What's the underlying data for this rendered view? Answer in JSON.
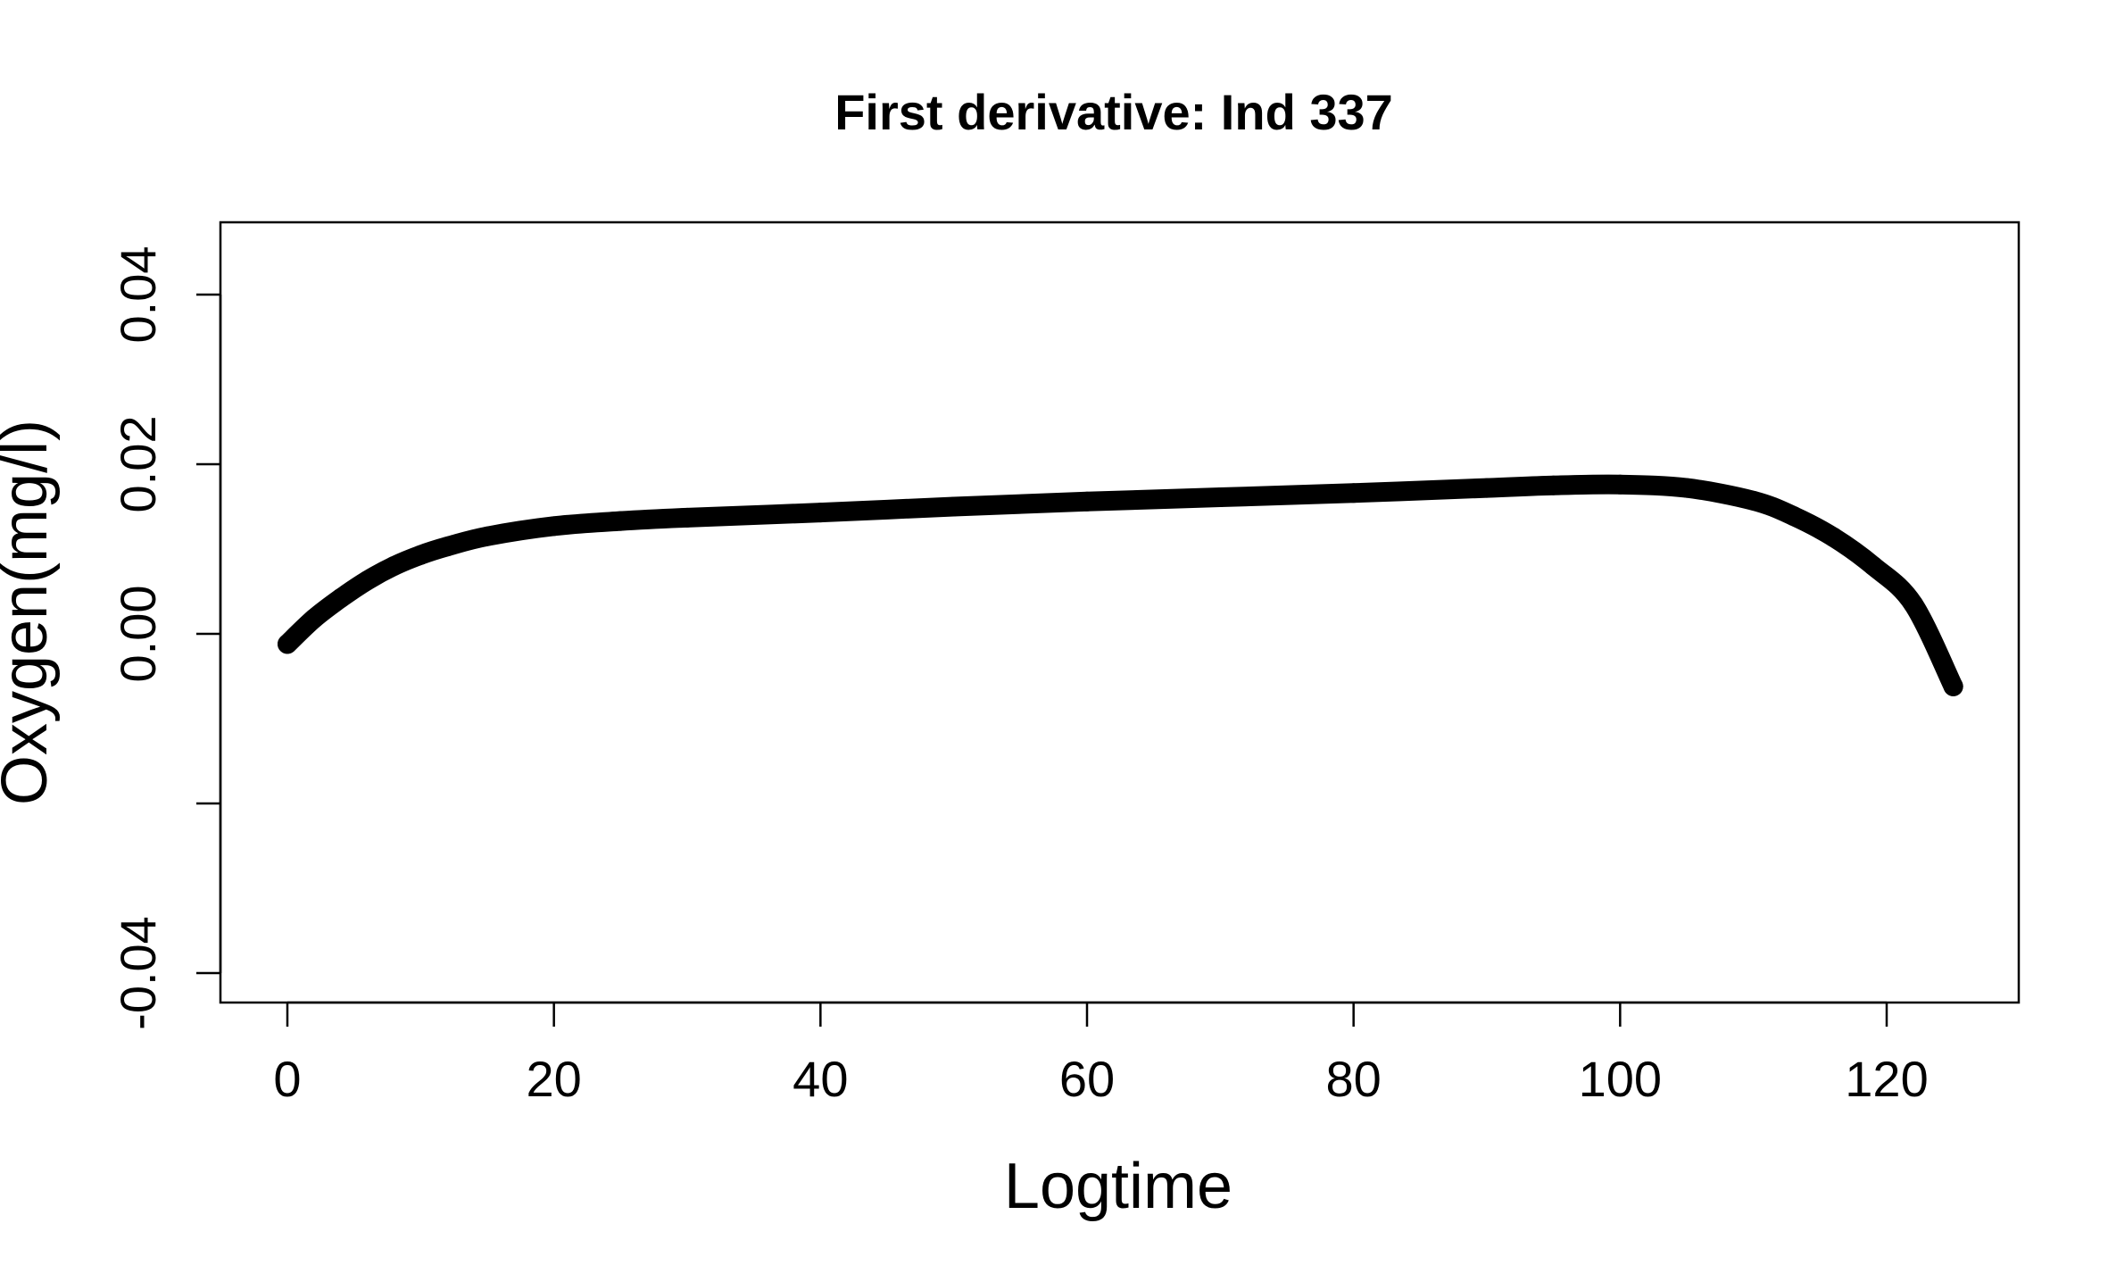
{
  "chart_data": {
    "type": "line",
    "title": "First derivative: Ind  337",
    "xlabel": "Logtime",
    "ylabel": "Oxygen(mg/l)",
    "xlim": [
      -5,
      130
    ],
    "ylim": [
      -0.044,
      0.048
    ],
    "x_ticks": [
      0,
      20,
      40,
      60,
      80,
      100,
      120
    ],
    "x_tick_labels": [
      "0",
      "20",
      "40",
      "60",
      "80",
      "100",
      "120"
    ],
    "y_ticks": [
      -0.04,
      -0.02,
      0.0,
      0.02,
      0.04
    ],
    "y_tick_labels": [
      "-0.04",
      "",
      "0.00",
      "0.02",
      "0.04"
    ],
    "grid": false,
    "color": "#000000",
    "series": [
      {
        "x": [
          0,
          2,
          4,
          6,
          8,
          10,
          12,
          15,
          20,
          25,
          30,
          40,
          50,
          60,
          70,
          80,
          90,
          95,
          100,
          105,
          110,
          113,
          116,
          119,
          122,
          125
        ],
        "y": [
          -0.0012,
          0.0018,
          0.0042,
          0.0063,
          0.008,
          0.0093,
          0.0103,
          0.0115,
          0.0127,
          0.0133,
          0.0137,
          0.0143,
          0.015,
          0.0156,
          0.0161,
          0.0166,
          0.0172,
          0.0175,
          0.0176,
          0.0172,
          0.0157,
          0.0139,
          0.0114,
          0.008,
          0.0035,
          -0.0062
        ]
      }
    ]
  }
}
